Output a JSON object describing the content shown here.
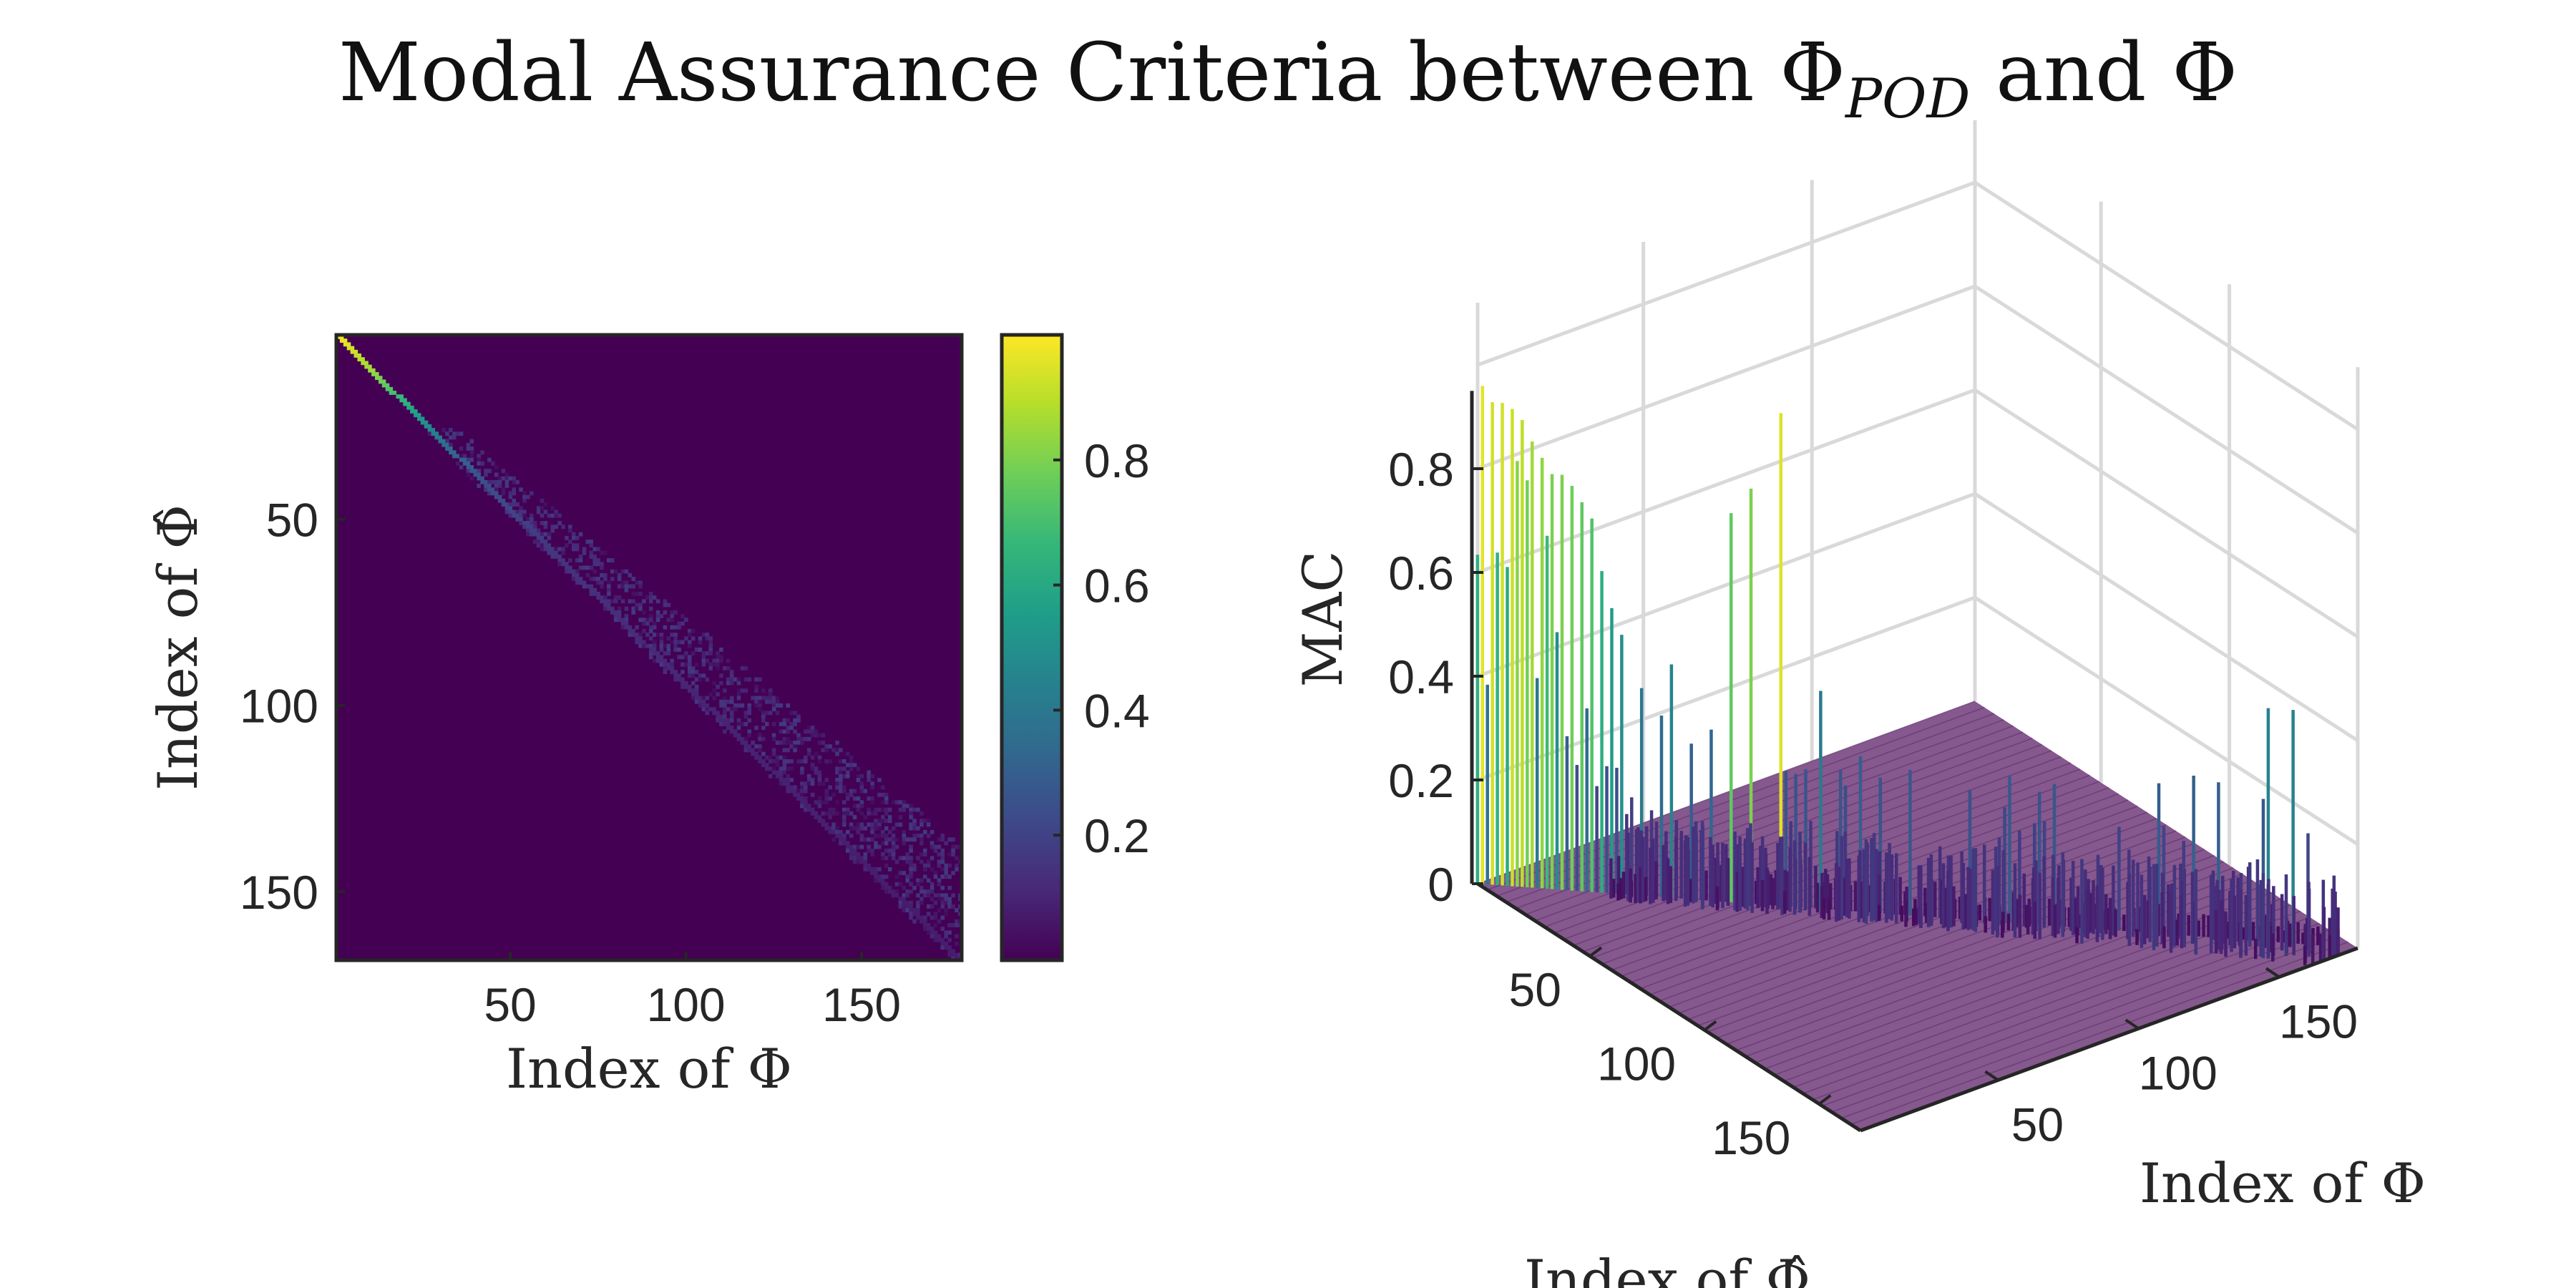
{
  "figure": {
    "title_main": "Modal Assurance Criteria between Φ",
    "title_sub": "POD",
    "title_end": " and Φ"
  },
  "chart_data": [
    {
      "type": "heatmap",
      "panel": "left",
      "xlabel": "Index of Φ",
      "ylabel": "Index of Φ̂",
      "x_ticks": [
        50,
        100,
        150
      ],
      "y_ticks": [
        50,
        100,
        150
      ],
      "x_range": [
        1,
        178
      ],
      "y_range": [
        1,
        168
      ],
      "colormap": "viridis",
      "clim": [
        0,
        1
      ],
      "colorbar_ticks": [
        0.2,
        0.4,
        0.6,
        0.8
      ],
      "pattern": "Diagonal band from (1,1) to about (178,168); MAC near 1 on the main diagonal for the first ~30 modes, decaying to about 0.3 near index 30 and below 0.2 for higher modes; band spreads below the diagonal for higher indices; off-band values ≈ 0.",
      "diagonal_mac": [
        {
          "index": 1,
          "mac": 0.98
        },
        {
          "index": 10,
          "mac": 0.85
        },
        {
          "index": 20,
          "mac": 0.6
        },
        {
          "index": 30,
          "mac": 0.35
        },
        {
          "index": 40,
          "mac": 0.25
        },
        {
          "index": 60,
          "mac": 0.15
        },
        {
          "index": 100,
          "mac": 0.1
        },
        {
          "index": 150,
          "mac": 0.08
        }
      ]
    },
    {
      "type": "bar3d",
      "panel": "right",
      "zlabel": "MAC",
      "xlabel": "Index of Φ",
      "ylabel": "Index of Φ̂",
      "z_ticks": [
        0,
        0.2,
        0.4,
        0.6,
        0.8
      ],
      "zlim": [
        0,
        1
      ],
      "x_ticks": [
        50,
        100,
        150
      ],
      "y_ticks": [
        50,
        100,
        150
      ],
      "colormap": "viridis",
      "grid": true,
      "spikes": [
        {
          "index": 2,
          "mac": 0.96
        },
        {
          "index": 4,
          "mac": 0.93
        },
        {
          "index": 6,
          "mac": 0.93
        },
        {
          "index": 8,
          "mac": 0.92
        },
        {
          "index": 10,
          "mac": 0.9
        },
        {
          "index": 12,
          "mac": 0.86
        },
        {
          "index": 14,
          "mac": 0.83
        },
        {
          "index": 16,
          "mac": 0.8
        },
        {
          "index": 18,
          "mac": 0.8
        },
        {
          "index": 20,
          "mac": 0.78
        },
        {
          "index": 22,
          "mac": 0.75
        },
        {
          "index": 24,
          "mac": 0.72
        },
        {
          "index": 26,
          "mac": 0.62
        },
        {
          "index": 28,
          "mac": 0.55
        },
        {
          "index": 30,
          "mac": 0.5
        },
        {
          "index": 34,
          "mac": 0.4
        },
        {
          "index": 38,
          "mac": 0.35
        },
        {
          "index": 40,
          "mac": 0.45
        },
        {
          "index": 44,
          "mac": 0.3
        },
        {
          "index": 48,
          "mac": 0.33
        },
        {
          "index": 52,
          "mac": 0.75
        },
        {
          "index": 56,
          "mac": 0.8
        },
        {
          "index": 62,
          "mac": 0.95
        },
        {
          "index": 70,
          "mac": 0.42
        },
        {
          "index": 78,
          "mac": 0.3
        },
        {
          "index": 88,
          "mac": 0.28
        },
        {
          "index": 100,
          "mac": 0.25
        },
        {
          "index": 115,
          "mac": 0.2
        },
        {
          "index": 130,
          "mac": 0.2
        },
        {
          "index": 150,
          "mac": 0.3
        },
        {
          "index": 160,
          "mac": 0.45
        },
        {
          "index": 165,
          "mac": 0.45
        }
      ]
    }
  ],
  "colors": {
    "viridis": [
      "#440154",
      "#482878",
      "#3e4989",
      "#31688e",
      "#26828e",
      "#1f9e89",
      "#35b779",
      "#6ece58",
      "#b5de2b",
      "#fde725"
    ],
    "background": "#440154",
    "floor": "#7b4a84",
    "grid": "#d9d9d9",
    "axis": "#262626"
  }
}
